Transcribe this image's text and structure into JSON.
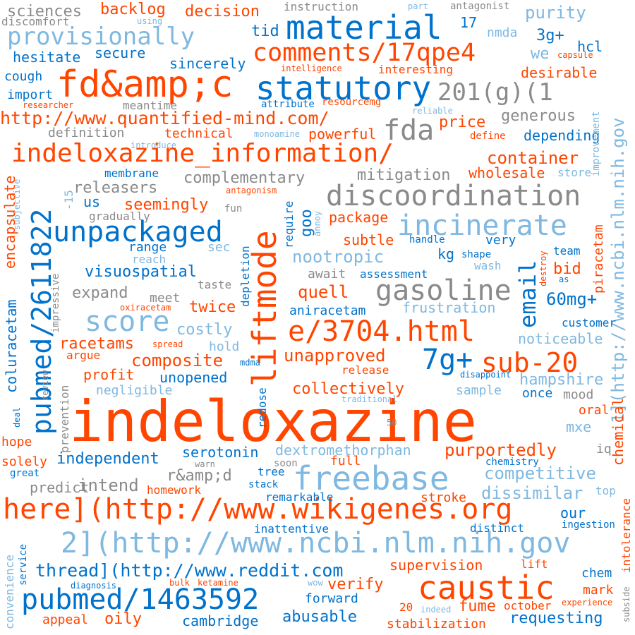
{
  "palette": {
    "orange": "#ff4500",
    "blue": "#0072cc",
    "light_blue": "#7fb8e0",
    "gray": "#8a8a8a",
    "background": "#ffffff"
  },
  "words": [
    {
      "id": "indeloxazine",
      "text": "indeloxazine",
      "color": "orange"
    },
    {
      "id": "fdamp",
      "text": "fd&amp;c",
      "color": "orange"
    },
    {
      "id": "material",
      "text": "material",
      "color": "blue"
    },
    {
      "id": "statutory",
      "text": "statutory",
      "color": "blue"
    },
    {
      "id": "comments",
      "text": "comments/17qpe4",
      "color": "orange"
    },
    {
      "id": "provisionally",
      "text": "provisionally",
      "color": "light_blue"
    },
    {
      "id": "info",
      "text": "indeloxazine_information/",
      "color": "orange"
    },
    {
      "id": "discoordination",
      "text": "discoordination",
      "color": "gray"
    },
    {
      "id": "liftmode",
      "text": "liftmode",
      "color": "orange"
    },
    {
      "id": "unpackaged",
      "text": "unpackaged",
      "color": "blue"
    },
    {
      "id": "incinerate",
      "text": "incinerate",
      "color": "light_blue"
    },
    {
      "id": "pubmed26",
      "text": "pubmed/2611822",
      "color": "blue"
    },
    {
      "id": "gasoline",
      "text": "gasoline",
      "color": "gray"
    },
    {
      "id": "e3704",
      "text": "e/3704.html",
      "color": "orange"
    },
    {
      "id": "score",
      "text": "score",
      "color": "light_blue"
    },
    {
      "id": "sub20",
      "text": "sub-20",
      "color": "orange"
    },
    {
      "id": "7g",
      "text": "7g+",
      "color": "blue"
    },
    {
      "id": "freebase",
      "text": "freebase",
      "color": "light_blue"
    },
    {
      "id": "herewiki",
      "text": "here](http://www.wikigenes.org",
      "color": "orange"
    },
    {
      "id": "ncbi2",
      "text": "2](http://www.ncbi.nlm.nih.gov",
      "color": "light_blue"
    },
    {
      "id": "caustic",
      "text": "caustic",
      "color": "orange"
    },
    {
      "id": "pubmed14",
      "text": "pubmed/1463592",
      "color": "blue"
    },
    {
      "id": "thread",
      "text": "thread](http://www.reddit.com",
      "color": "blue"
    },
    {
      "id": "fda",
      "text": "fda",
      "color": "gray"
    },
    {
      "id": "201g",
      "text": "201(g)(1",
      "color": "gray"
    },
    {
      "id": "quantified",
      "text": "http://www.quantified-mind.com/",
      "color": "orange"
    },
    {
      "id": "ncbi1",
      "text": "1](http://www.ncbi.nlm.nih.gov",
      "color": "light_blue"
    },
    {
      "id": "email",
      "text": "email",
      "color": "blue"
    },
    {
      "id": "sciences",
      "text": "sciences",
      "color": "gray"
    },
    {
      "id": "backlog",
      "text": "backlog",
      "color": "orange"
    },
    {
      "id": "decision",
      "text": "decision",
      "color": "orange"
    },
    {
      "id": "instruction",
      "text": "instruction",
      "color": "gray"
    },
    {
      "id": "part",
      "text": "part",
      "color": "light_blue"
    },
    {
      "id": "antagonist",
      "text": "antagonist",
      "color": "gray"
    },
    {
      "id": "purity",
      "text": "purity",
      "color": "light_blue"
    },
    {
      "id": "discomfort",
      "text": "discomfort",
      "color": "gray"
    },
    {
      "id": "using",
      "text": "using",
      "color": "light_blue"
    },
    {
      "id": "tid",
      "text": "tid",
      "color": "blue"
    },
    {
      "id": "n17",
      "text": "17",
      "color": "blue"
    },
    {
      "id": "nmda",
      "text": "nmda",
      "color": "light_blue"
    },
    {
      "id": "3g",
      "text": "3g+",
      "color": "blue"
    },
    {
      "id": "hcl",
      "text": "hcl",
      "color": "blue"
    },
    {
      "id": "hesitate",
      "text": "hesitate",
      "color": "blue"
    },
    {
      "id": "secure",
      "text": "secure",
      "color": "blue"
    },
    {
      "id": "we",
      "text": "we",
      "color": "light_blue"
    },
    {
      "id": "capsule",
      "text": "capsule",
      "color": "orange"
    },
    {
      "id": "sincerely",
      "text": "sincerely",
      "color": "blue"
    },
    {
      "id": "cough",
      "text": "cough",
      "color": "blue"
    },
    {
      "id": "intelligence",
      "text": "intelligence",
      "color": "orange"
    },
    {
      "id": "interesting",
      "text": "interesting",
      "color": "orange"
    },
    {
      "id": "desirable",
      "text": "desirable",
      "color": "orange"
    },
    {
      "id": "import",
      "text": "import",
      "color": "blue"
    },
    {
      "id": "researcher",
      "text": "researcher",
      "color": "orange"
    },
    {
      "id": "meantime",
      "text": "meantime",
      "color": "gray"
    },
    {
      "id": "attribute",
      "text": "attribute",
      "color": "blue"
    },
    {
      "id": "resourcemg",
      "text": "resourcemg",
      "color": "orange"
    },
    {
      "id": "reliable",
      "text": "reliable",
      "color": "light_blue"
    },
    {
      "id": "generous",
      "text": "generous",
      "color": "gray"
    },
    {
      "id": "definition",
      "text": "definition",
      "color": "gray"
    },
    {
      "id": "technical",
      "text": "technical",
      "color": "orange"
    },
    {
      "id": "monoamine",
      "text": "monoamine",
      "color": "light_blue"
    },
    {
      "id": "powerful",
      "text": "powerful",
      "color": "orange"
    },
    {
      "id": "price",
      "text": "price",
      "color": "orange"
    },
    {
      "id": "define",
      "text": "define",
      "color": "orange"
    },
    {
      "id": "depending",
      "text": "depending",
      "color": "blue"
    },
    {
      "id": "improvement",
      "text": "improvement",
      "color": "light_blue"
    },
    {
      "id": "introduce",
      "text": "introduce",
      "color": "light_blue"
    },
    {
      "id": "container",
      "text": "container",
      "color": "orange"
    },
    {
      "id": "encapsulate",
      "text": "encapsulate",
      "color": "orange"
    },
    {
      "id": "subjective",
      "text": "subjective",
      "color": "light_blue"
    },
    {
      "id": "membrane",
      "text": "membrane",
      "color": "blue"
    },
    {
      "id": "complementary",
      "text": "complementary",
      "color": "gray"
    },
    {
      "id": "mitigation",
      "text": "mitigation",
      "color": "gray"
    },
    {
      "id": "wholesale",
      "text": "wholesale",
      "color": "orange"
    },
    {
      "id": "store",
      "text": "store",
      "color": "light_blue"
    },
    {
      "id": "minus15",
      "text": "-15",
      "color": "light_blue"
    },
    {
      "id": "releasers",
      "text": "releasers",
      "color": "gray"
    },
    {
      "id": "antagonism",
      "text": "antagonism",
      "color": "orange"
    },
    {
      "id": "us",
      "text": "us",
      "color": "blue"
    },
    {
      "id": "gradually",
      "text": "gradually",
      "color": "gray"
    },
    {
      "id": "seemingly",
      "text": "seemingly",
      "color": "orange"
    },
    {
      "id": "fun",
      "text": "fun",
      "color": "gray"
    },
    {
      "id": "require",
      "text": "require",
      "color": "blue"
    },
    {
      "id": "goo",
      "text": "goo",
      "color": "blue"
    },
    {
      "id": "annoy",
      "text": "annoy",
      "color": "light_blue"
    },
    {
      "id": "package",
      "text": "package",
      "color": "orange"
    },
    {
      "id": "piracetam",
      "text": "piracetam",
      "color": "orange"
    },
    {
      "id": "subtle",
      "text": "subtle",
      "color": "orange"
    },
    {
      "id": "handle",
      "text": "handle",
      "color": "blue"
    },
    {
      "id": "very",
      "text": "very",
      "color": "blue"
    },
    {
      "id": "range",
      "text": "range",
      "color": "blue"
    },
    {
      "id": "sec",
      "text": "sec",
      "color": "light_blue"
    },
    {
      "id": "nootropic",
      "text": "nootropic",
      "color": "light_blue"
    },
    {
      "id": "kg",
      "text": "kg",
      "color": "blue"
    },
    {
      "id": "shape",
      "text": "shape",
      "color": "blue"
    },
    {
      "id": "team",
      "text": "team",
      "color": "blue"
    },
    {
      "id": "reach",
      "text": "reach",
      "color": "light_blue"
    },
    {
      "id": "visuospatial",
      "text": "visuospatial",
      "color": "blue"
    },
    {
      "id": "depletion",
      "text": "depletion",
      "color": "blue"
    },
    {
      "id": "await",
      "text": "await",
      "color": "gray"
    },
    {
      "id": "assessment",
      "text": "assessment",
      "color": "blue"
    },
    {
      "id": "wash",
      "text": "wash",
      "color": "light_blue"
    },
    {
      "id": "destroy",
      "text": "destroy",
      "color": "orange"
    },
    {
      "id": "bid",
      "text": "bid",
      "color": "orange"
    },
    {
      "id": "as",
      "text": "as",
      "color": "blue"
    },
    {
      "id": "impressive",
      "text": "impressive",
      "color": "gray"
    },
    {
      "id": "expand",
      "text": "expand",
      "color": "gray"
    },
    {
      "id": "taste",
      "text": "taste",
      "color": "gray"
    },
    {
      "id": "quell",
      "text": "quell",
      "color": "orange"
    },
    {
      "id": "meet",
      "text": "meet",
      "color": "gray"
    },
    {
      "id": "oxiracetam",
      "text": "oxiracetam",
      "color": "orange"
    },
    {
      "id": "twice",
      "text": "twice",
      "color": "orange"
    },
    {
      "id": "aniracetam",
      "text": "aniracetam",
      "color": "blue"
    },
    {
      "id": "frustration",
      "text": "frustration",
      "color": "light_blue"
    },
    {
      "id": "60mg",
      "text": "60mg+",
      "color": "blue"
    },
    {
      "id": "coluracetam",
      "text": "coluracetam",
      "color": "blue"
    },
    {
      "id": "costly",
      "text": "costly",
      "color": "light_blue"
    },
    {
      "id": "customer",
      "text": "customer",
      "color": "blue"
    },
    {
      "id": "spread",
      "text": "spread",
      "color": "orange"
    },
    {
      "id": "racetams",
      "text": "racetams",
      "color": "orange"
    },
    {
      "id": "hold",
      "text": "hold",
      "color": "light_blue"
    },
    {
      "id": "noticeable",
      "text": "noticeable",
      "color": "light_blue"
    },
    {
      "id": "argue",
      "text": "argue",
      "color": "orange"
    },
    {
      "id": "composite",
      "text": "composite",
      "color": "orange"
    },
    {
      "id": "mdma",
      "text": "mdma",
      "color": "blue"
    },
    {
      "id": "unapproved",
      "text": "unapproved",
      "color": "orange"
    },
    {
      "id": "profit",
      "text": "profit",
      "color": "orange"
    },
    {
      "id": "release",
      "text": "release",
      "color": "orange"
    },
    {
      "id": "disappoint",
      "text": "disappoint",
      "color": "blue"
    },
    {
      "id": "review",
      "text": "review",
      "color": "gray"
    },
    {
      "id": "unopened",
      "text": "unopened",
      "color": "blue"
    },
    {
      "id": "redose",
      "text": "redose",
      "color": "blue"
    },
    {
      "id": "hampshire",
      "text": "hampshire",
      "color": "light_blue"
    },
    {
      "id": "collectively",
      "text": "collectively",
      "color": "orange"
    },
    {
      "id": "prevention",
      "text": "prevention",
      "color": "gray"
    },
    {
      "id": "negligible",
      "text": "negligible",
      "color": "light_blue"
    },
    {
      "id": "traditional",
      "text": "traditional",
      "color": "light_blue"
    },
    {
      "id": "sample",
      "text": "sample",
      "color": "light_blue"
    },
    {
      "id": "once",
      "text": "once",
      "color": "blue"
    },
    {
      "id": "mood",
      "text": "mood",
      "color": "gray"
    },
    {
      "id": "deal",
      "text": "deal",
      "color": "blue"
    },
    {
      "id": "chemical",
      "text": "chemical",
      "color": "orange"
    },
    {
      "id": "n50",
      "text": "50",
      "color": "gray"
    },
    {
      "id": "oral",
      "text": "oral",
      "color": "orange"
    },
    {
      "id": "mxe",
      "text": "mxe",
      "color": "light_blue"
    },
    {
      "id": "hope",
      "text": "hope",
      "color": "orange"
    },
    {
      "id": "dextromethorphan",
      "text": "dextromethorphan",
      "color": "light_blue"
    },
    {
      "id": "serotonin",
      "text": "serotonin",
      "color": "blue"
    },
    {
      "id": "purportedly",
      "text": "purportedly",
      "color": "orange"
    },
    {
      "id": "iq",
      "text": "iq",
      "color": "gray"
    },
    {
      "id": "independent",
      "text": "independent",
      "color": "blue"
    },
    {
      "id": "solely",
      "text": "solely",
      "color": "orange"
    },
    {
      "id": "ramp",
      "text": "r&amp;d",
      "color": "gray"
    },
    {
      "id": "warn",
      "text": "warn",
      "color": "gray"
    },
    {
      "id": "soon",
      "text": "soon",
      "color": "gray"
    },
    {
      "id": "full",
      "text": "full",
      "color": "orange"
    },
    {
      "id": "chemistry",
      "text": "chemistry",
      "color": "blue"
    },
    {
      "id": "great",
      "text": "great",
      "color": "blue"
    },
    {
      "id": "tree",
      "text": "tree",
      "color": "blue"
    },
    {
      "id": "competitive",
      "text": "competitive",
      "color": "light_blue"
    },
    {
      "id": "predict",
      "text": "predict",
      "color": "gray"
    },
    {
      "id": "stack",
      "text": "stack",
      "color": "blue"
    },
    {
      "id": "intend",
      "text": "intend",
      "color": "gray"
    },
    {
      "id": "homework",
      "text": "homework",
      "color": "orange"
    },
    {
      "id": "dissimilar",
      "text": "dissimilar",
      "color": "light_blue"
    },
    {
      "id": "top",
      "text": "top",
      "color": "light_blue"
    },
    {
      "id": "intolerance",
      "text": "intolerance",
      "color": "orange"
    },
    {
      "id": "remarkable",
      "text": "remarkable",
      "color": "blue"
    },
    {
      "id": "stroke",
      "text": "stroke",
      "color": "orange"
    },
    {
      "id": "our",
      "text": "our",
      "color": "blue"
    },
    {
      "id": "ingestion",
      "text": "ingestion",
      "color": "blue"
    },
    {
      "id": "inattentive",
      "text": "inattentive",
      "color": "blue"
    },
    {
      "id": "distinct",
      "text": "distinct",
      "color": "blue"
    },
    {
      "id": "convenience",
      "text": "convenience",
      "color": "light_blue"
    },
    {
      "id": "service",
      "text": "service",
      "color": "blue"
    },
    {
      "id": "supervision",
      "text": "supervision",
      "color": "orange"
    },
    {
      "id": "lift",
      "text": "lift",
      "color": "orange"
    },
    {
      "id": "chem",
      "text": "chem",
      "color": "blue"
    },
    {
      "id": "verify",
      "text": "verify",
      "color": "orange"
    },
    {
      "id": "diagnosis",
      "text": "diagnosis",
      "color": "blue"
    },
    {
      "id": "bulk",
      "text": "bulk",
      "color": "orange"
    },
    {
      "id": "ketamine",
      "text": "ketamine",
      "color": "orange"
    },
    {
      "id": "wow",
      "text": "wow",
      "color": "light_blue"
    },
    {
      "id": "mark",
      "text": "mark",
      "color": "orange"
    },
    {
      "id": "subside",
      "text": "subside",
      "color": "gray"
    },
    {
      "id": "forward",
      "text": "forward",
      "color": "blue"
    },
    {
      "id": "fume",
      "text": "fume",
      "color": "orange"
    },
    {
      "id": "n20",
      "text": "20",
      "color": "orange"
    },
    {
      "id": "indeed",
      "text": "indeed",
      "color": "light_blue"
    },
    {
      "id": "october",
      "text": "october",
      "color": "orange"
    },
    {
      "id": "experience",
      "text": "experience",
      "color": "orange"
    },
    {
      "id": "appeal",
      "text": "appeal",
      "color": "orange"
    },
    {
      "id": "oily",
      "text": "oily",
      "color": "orange"
    },
    {
      "id": "cambridge",
      "text": "cambridge",
      "color": "blue"
    },
    {
      "id": "abusable",
      "text": "abusable",
      "color": "blue"
    },
    {
      "id": "stabilization",
      "text": "stabilization",
      "color": "orange"
    },
    {
      "id": "requesting",
      "text": "requesting",
      "color": "blue"
    }
  ]
}
